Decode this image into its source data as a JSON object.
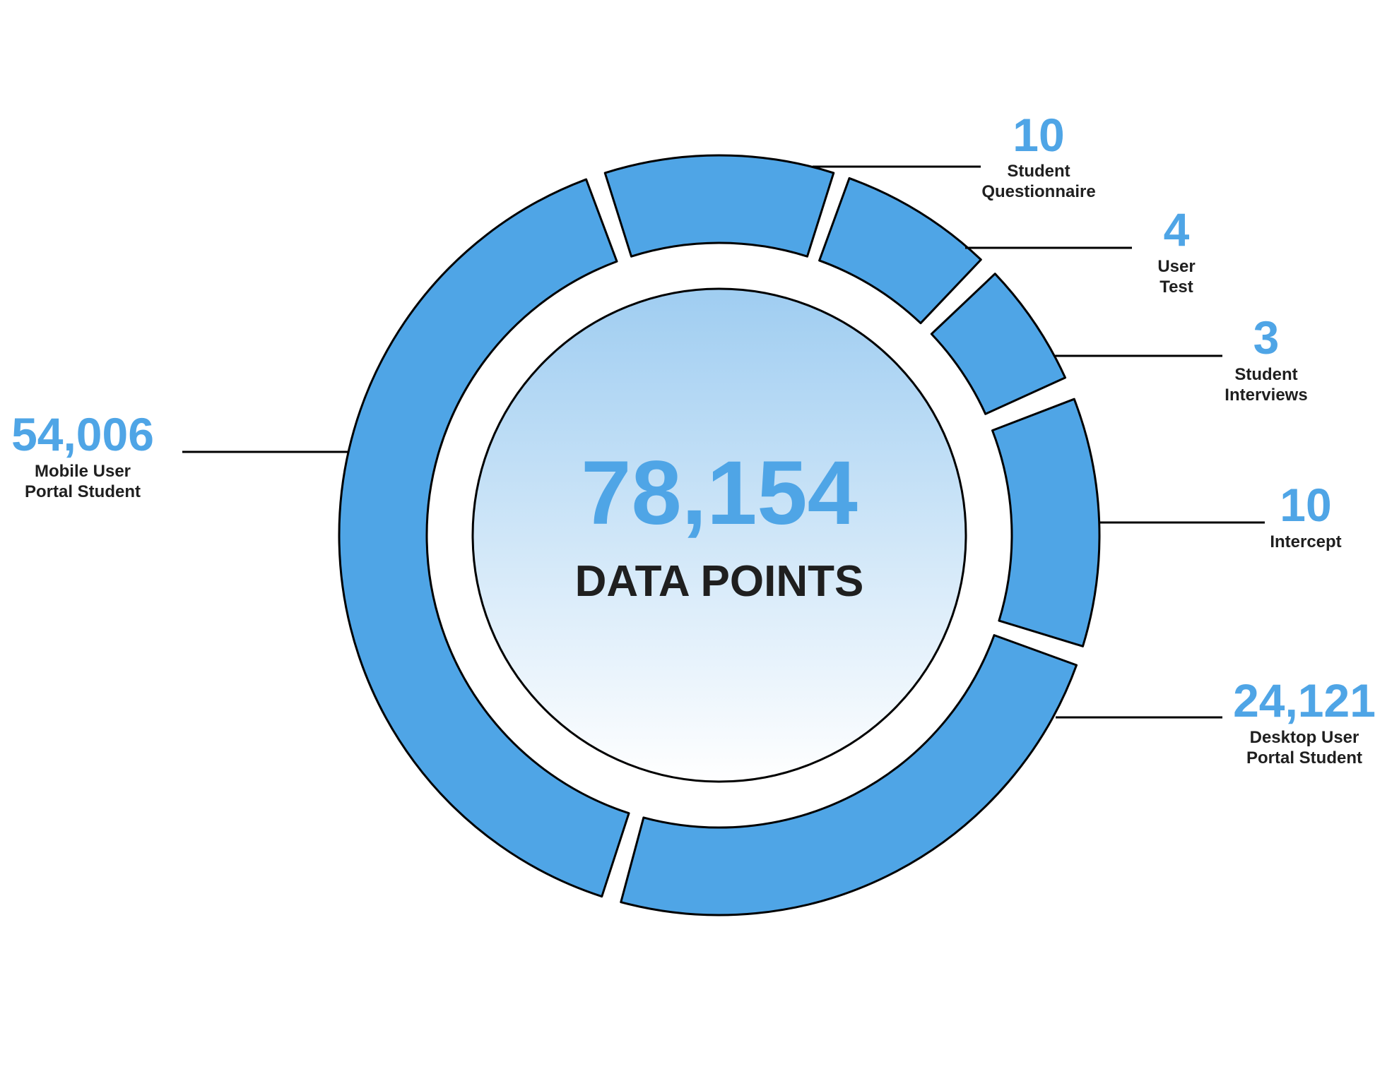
{
  "colors": {
    "accent": "#4FA5E6",
    "text_dark": "#1F1F1F",
    "outline": "#000000",
    "center_top": "#9FCDF1",
    "center_bottom": "#FFFFFF"
  },
  "center": {
    "total": "78,154",
    "caption": "DATA POINTS"
  },
  "chart_data": {
    "type": "pie",
    "style": "donut",
    "total": 78154,
    "slices": [
      {
        "value": "10",
        "label_lines": [
          "Student",
          "Questionnaire"
        ]
      },
      {
        "value": "4",
        "label_lines": [
          "User",
          "Test"
        ]
      },
      {
        "value": "3",
        "label_lines": [
          "Student",
          "Interviews"
        ]
      },
      {
        "value": "10",
        "label_lines": [
          "Intercept"
        ]
      },
      {
        "value": "24,121",
        "label_lines": [
          "Desktop User",
          "Portal Student"
        ]
      },
      {
        "value": "54,006",
        "label_lines": [
          "Mobile User",
          "Portal Student"
        ]
      }
    ],
    "legend": "none",
    "grid": false
  }
}
